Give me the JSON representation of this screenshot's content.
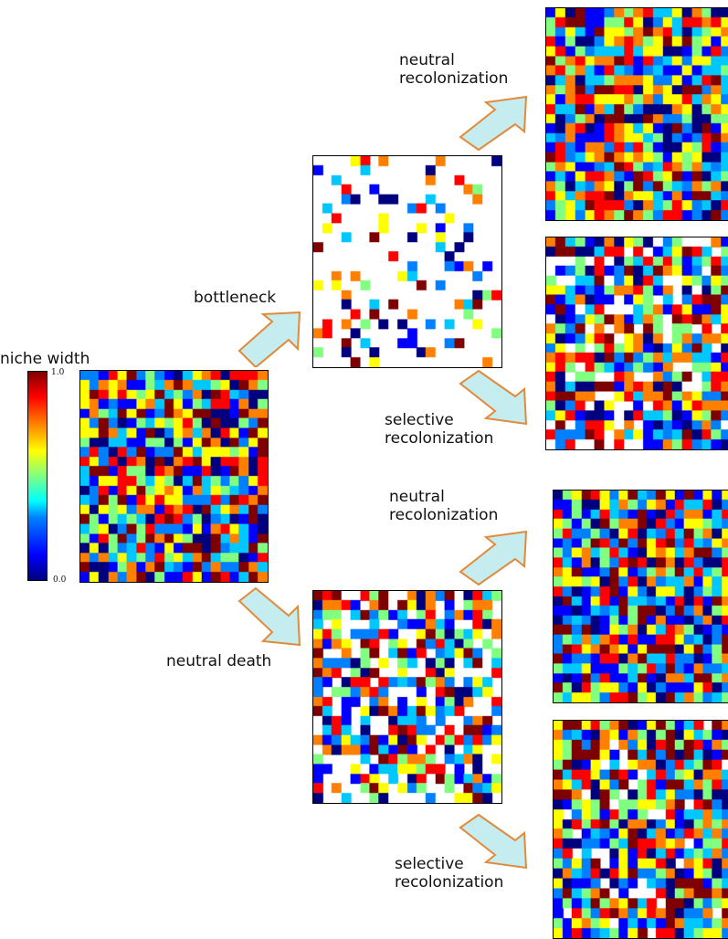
{
  "labels": {
    "colorbar_title": "niche width",
    "colorbar_max": "1.0",
    "colorbar_min": "0.0",
    "bottleneck": "bottleneck",
    "neutral_death": "neutral death",
    "neutral_recolonization": "neutral\nrecolonization",
    "selective_recolonization": "selective\nrecolonization"
  },
  "colors": {
    "arrow_fill": "#c5ecef",
    "arrow_stroke": "#e08a3a",
    "jet": [
      "#00007f",
      "#0000ff",
      "#0080ff",
      "#00c8ff",
      "#80ff80",
      "#ffff00",
      "#ff8000",
      "#ff0000",
      "#7f0000"
    ],
    "empty": "#ffffff"
  },
  "panels": [
    {
      "id": "initial",
      "rows": 22,
      "cols": 20,
      "fill": 1.0,
      "seed": 11
    },
    {
      "id": "bottleneck",
      "rows": 22,
      "cols": 20,
      "fill": 0.22,
      "seed": 23
    },
    {
      "id": "neutral-death",
      "rows": 22,
      "cols": 20,
      "fill": 0.72,
      "seed": 37
    },
    {
      "id": "bottleneck-neutral-recolonization",
      "rows": 22,
      "cols": 20,
      "fill": 1.0,
      "seed": 41
    },
    {
      "id": "bottleneck-selective-recolonization",
      "rows": 22,
      "cols": 20,
      "fill": 0.82,
      "seed": 53
    },
    {
      "id": "death-neutral-recolonization",
      "rows": 22,
      "cols": 20,
      "fill": 1.0,
      "seed": 61
    },
    {
      "id": "death-selective-recolonization",
      "rows": 22,
      "cols": 20,
      "fill": 0.93,
      "seed": 73
    }
  ]
}
